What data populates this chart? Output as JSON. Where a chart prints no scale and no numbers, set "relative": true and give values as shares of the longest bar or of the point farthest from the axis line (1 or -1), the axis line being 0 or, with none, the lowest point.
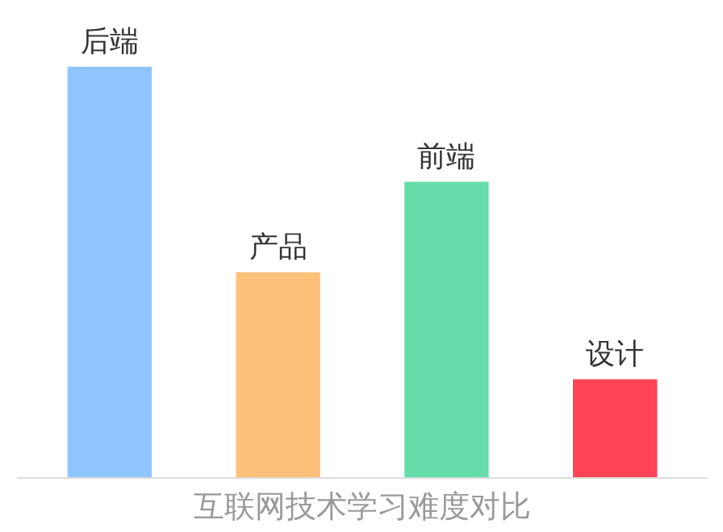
{
  "chart_data": {
    "type": "bar",
    "title": "互联网技术学习难度对比",
    "relative": true,
    "categories": [
      "后端",
      "产品",
      "前端",
      "设计"
    ],
    "values": [
      1,
      0.5,
      0.72,
      0.24
    ],
    "colors": [
      "#8ec5ff",
      "#ffc07a",
      "#66ddaa",
      "#ff4455"
    ],
    "grid": false
  }
}
